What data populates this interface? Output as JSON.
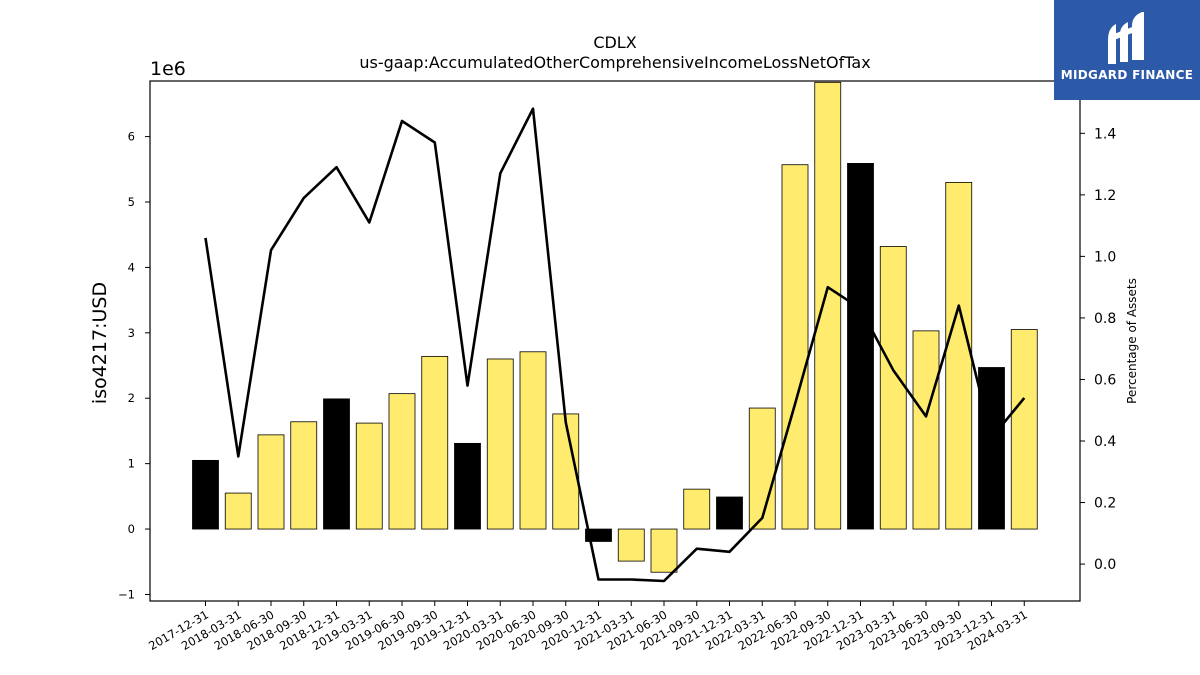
{
  "chart_data": {
    "type": "bar",
    "title": "CDLX",
    "subtitle": "us-gaap:AccumulatedOtherComprehensiveIncomeLossNetOfTax",
    "ylabel": "iso4217:USD",
    "y2label": "Percentage of Assets",
    "yscale_label": "1e6",
    "ylim": [
      -1.1,
      6.85
    ],
    "y2lim": [
      -0.12,
      1.57
    ],
    "yticks": [
      "−1",
      "0",
      "1",
      "2",
      "3",
      "4",
      "5",
      "6"
    ],
    "y2ticks": [
      "0.0",
      "0.2",
      "0.4",
      "0.6",
      "0.8",
      "1.0",
      "1.2",
      "1.4"
    ],
    "categories": [
      "2017-12-31",
      "2018-03-31",
      "2018-06-30",
      "2018-09-30",
      "2018-12-31",
      "2019-03-31",
      "2019-06-30",
      "2019-09-30",
      "2019-12-31",
      "2020-03-31",
      "2020-06-30",
      "2020-09-30",
      "2020-12-31",
      "2021-03-31",
      "2021-06-30",
      "2021-09-30",
      "2021-12-31",
      "2022-03-31",
      "2022-06-30",
      "2022-09-30",
      "2022-12-31",
      "2023-03-31",
      "2023-06-30",
      "2023-09-30",
      "2023-12-31",
      "2024-03-31"
    ],
    "series": [
      {
        "type": "bar",
        "values": [
          1.05,
          0.55,
          1.44,
          1.64,
          1.99,
          1.62,
          2.07,
          2.64,
          1.31,
          2.6,
          2.71,
          1.76,
          -0.19,
          -0.49,
          -0.66,
          0.61,
          0.49,
          1.85,
          5.57,
          6.83,
          5.59,
          4.32,
          3.03,
          5.3,
          2.47,
          3.05
        ],
        "colors": [
          "#000000",
          "#ffec6e",
          "#ffec6e",
          "#ffec6e",
          "#000000",
          "#ffec6e",
          "#ffec6e",
          "#ffec6e",
          "#000000",
          "#ffec6e",
          "#ffec6e",
          "#ffec6e",
          "#000000",
          "#ffec6e",
          "#ffec6e",
          "#ffec6e",
          "#000000",
          "#ffec6e",
          "#ffec6e",
          "#ffec6e",
          "#000000",
          "#ffec6e",
          "#ffec6e",
          "#ffec6e",
          "#000000",
          "#ffec6e"
        ]
      },
      {
        "type": "line",
        "axis": "right",
        "values": [
          1.06,
          0.35,
          1.02,
          1.19,
          1.29,
          1.11,
          1.44,
          1.37,
          0.58,
          1.27,
          1.48,
          0.46,
          -0.05,
          -0.05,
          -0.055,
          0.05,
          0.04,
          0.15,
          0.52,
          0.9,
          0.83,
          0.63,
          0.48,
          0.84,
          0.41,
          0.54
        ],
        "color": "#000000"
      }
    ],
    "grid": false,
    "legend": "none"
  },
  "logo": {
    "name": "MIDGARD FINANCE",
    "brand_color": "#2d5aa8"
  }
}
